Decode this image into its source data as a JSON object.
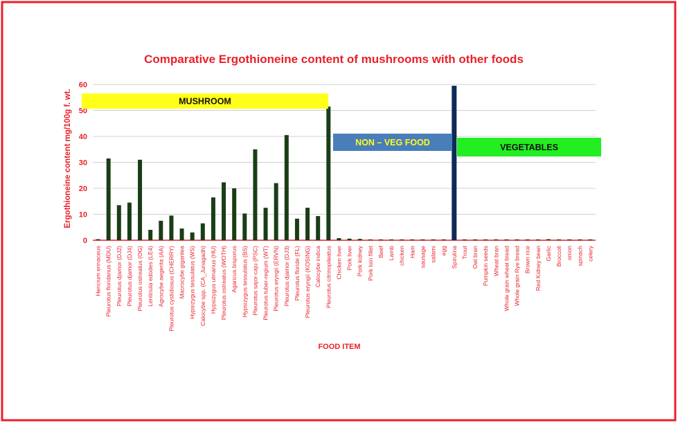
{
  "colors": {
    "border": "#e8202a",
    "title": "#e8202a",
    "axis_text": "#e8202a",
    "bar_dark": "#1a3d16",
    "bar_navy": "#0f2a57",
    "grid": "#d0d0d0",
    "mushroom_box": "#ffff1a",
    "nonveg_box": "#4a7ebb",
    "nonveg_text": "#ffff1a",
    "veg_box": "#22ee22"
  },
  "chart_data": {
    "type": "bar",
    "title": "Comparative Ergothioneine content  of mushrooms with other foods",
    "xlabel": "FOOD ITEM",
    "ylabel": "Ergothioneine content mg/100g f. wt.",
    "ylim": [
      0,
      60
    ],
    "yticks": [
      0,
      10,
      20,
      30,
      40,
      50,
      60
    ],
    "grid": true,
    "group_labels": [
      {
        "text": "MUSHROOM",
        "role": "mushroom"
      },
      {
        "text": "NON – VEG FOOD",
        "role": "nonveg"
      },
      {
        "text": "VEGETABLES",
        "role": "veg"
      }
    ],
    "categories": [
      "Hericium erinaceus",
      "Pleurotus floridanus  (MDU)",
      "Pleurotus djamor (DJ2)",
      "Pleurotus djamor (DJ4)",
      "Pleurotus ostreatus (OG)",
      "Lentinula edodes (LE4)",
      "Agrocybe aegerita (AA)",
      "Pleurotus cystidiosus (CHERRY)",
      "Macrocybe gigantea",
      "Hypsizygus tessulatus (WS)",
      "Calocybe spp. (CA_Junagadh)",
      "Hypsizygus ulmarius (HU)",
      "Pleurotus ostreatus (WOTH)",
      "Agaricus bisporus",
      "Hypsizygus tessulatus (BS)",
      "Pleurotus sajor-caju (PSC)",
      "Pleurotus tuber-regium (WT)",
      "Pleurotus eryngii (ERVN)",
      "Pleurotus djamor (DJ3)",
      "Pleurotus floride (FL)",
      "Pleurotus eryngii (KOSING)",
      "Calocybe indica",
      "Pleurotus citrinopileatus",
      "Chicken liver",
      "Pork liver",
      "Pork kidney",
      "Pork loin fillet",
      "Beef",
      "Lamb",
      "chicken",
      "Ham",
      "sausage",
      "salami",
      "egg",
      "Spirulina",
      "Trout",
      "Oat bran",
      "Pumpkin seeds",
      "Wheat bran",
      "Whole grain wheat bread",
      "Whole grain Rye bread",
      "Brown rice",
      "Red Kidney bean",
      "Garlic",
      "Broccoli",
      "onion",
      "spinach",
      "celery"
    ],
    "values": [
      0.4,
      31.5,
      13.5,
      14.5,
      31,
      4,
      7.5,
      9.5,
      4.5,
      3,
      6.5,
      16.5,
      22.3,
      20,
      10.3,
      35,
      12.5,
      22,
      40.5,
      8.3,
      12.5,
      9.3,
      51.5,
      0.8,
      0.6,
      0.5,
      0.3,
      0.2,
      0.2,
      0.1,
      0.2,
      0.1,
      0.1,
      0.1,
      59.5,
      0.1,
      0.3,
      0.1,
      0.1,
      0.1,
      0.1,
      0.1,
      0.1,
      0.4,
      0.2,
      0.1,
      0.1,
      0.1
    ],
    "highlight": {
      "category": "Spirulina",
      "color": "#0f2a57"
    }
  }
}
